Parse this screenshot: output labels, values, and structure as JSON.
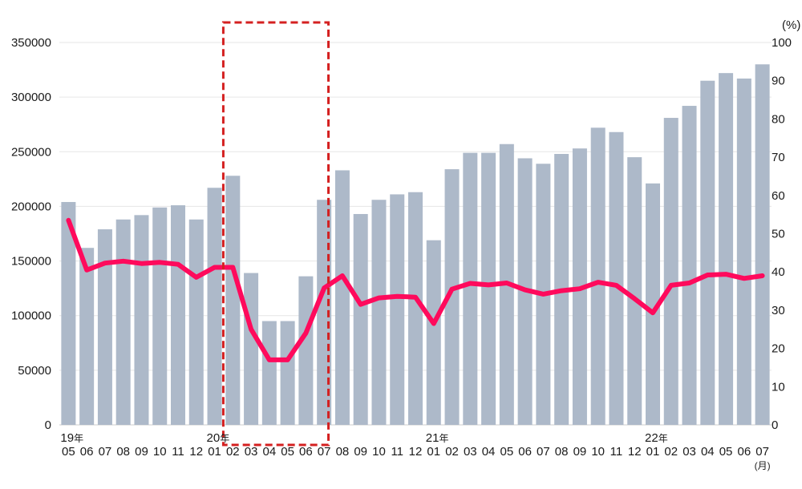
{
  "chart_data": {
    "type": "bar+line",
    "colors": {
      "bar": "#adb9c9",
      "line": "#ff0a5c",
      "highlight": "#d42020",
      "grid": "#e6e6e6"
    },
    "y_left": {
      "ylim": [
        0,
        350000
      ],
      "ticks": [
        "0",
        "50000",
        "100000",
        "150000",
        "200000",
        "250000",
        "300000",
        "350000"
      ]
    },
    "y_right": {
      "ylim": [
        0,
        100
      ],
      "ticks": [
        "0",
        "10",
        "20",
        "30",
        "40",
        "50",
        "60",
        "70",
        "80",
        "90",
        "100"
      ],
      "unit_label": "(%)"
    },
    "x_month_labels": [
      "05",
      "06",
      "07",
      "08",
      "09",
      "10",
      "11",
      "12",
      "01",
      "02",
      "03",
      "04",
      "05",
      "06",
      "07",
      "08",
      "09",
      "10",
      "11",
      "12",
      "01",
      "02",
      "03",
      "04",
      "05",
      "06",
      "07",
      "08",
      "09",
      "10",
      "11",
      "12",
      "01",
      "02",
      "03",
      "04",
      "05",
      "06",
      "07"
    ],
    "year_labels": [
      {
        "index": 0,
        "year": "19",
        "suffix": "年"
      },
      {
        "index": 8,
        "year": "20",
        "suffix": "年"
      },
      {
        "index": 20,
        "year": "21",
        "suffix": "年"
      },
      {
        "index": 32,
        "year": "22",
        "suffix": "年"
      }
    ],
    "month_unit_label": "(月)",
    "series": [
      {
        "name": "bars",
        "axis": "left",
        "values": [
          204000,
          162000,
          179000,
          188000,
          192000,
          199000,
          201000,
          188000,
          217000,
          228000,
          139000,
          95000,
          95000,
          136000,
          206000,
          233000,
          193000,
          206000,
          211000,
          213000,
          169000,
          234000,
          249000,
          249000,
          257000,
          244000,
          239000,
          248000,
          253000,
          272000,
          268000,
          245000,
          221000,
          281000,
          292000,
          315000,
          322000,
          317000,
          330000
        ]
      },
      {
        "name": "line",
        "axis": "right",
        "values": [
          53.5,
          40.5,
          42.3,
          42.8,
          42.2,
          42.5,
          42,
          38.6,
          41.2,
          41.2,
          25,
          17,
          17,
          24,
          35.8,
          39,
          31.5,
          33.2,
          33.6,
          33.4,
          26.5,
          35.5,
          37,
          36.6,
          37.1,
          35.3,
          34.2,
          35.1,
          35.6,
          37.3,
          36.5,
          33,
          29.3,
          36.5,
          37.1,
          39.2,
          39.4,
          38.3,
          39
        ]
      }
    ],
    "highlight_range": [
      9,
      14
    ]
  }
}
